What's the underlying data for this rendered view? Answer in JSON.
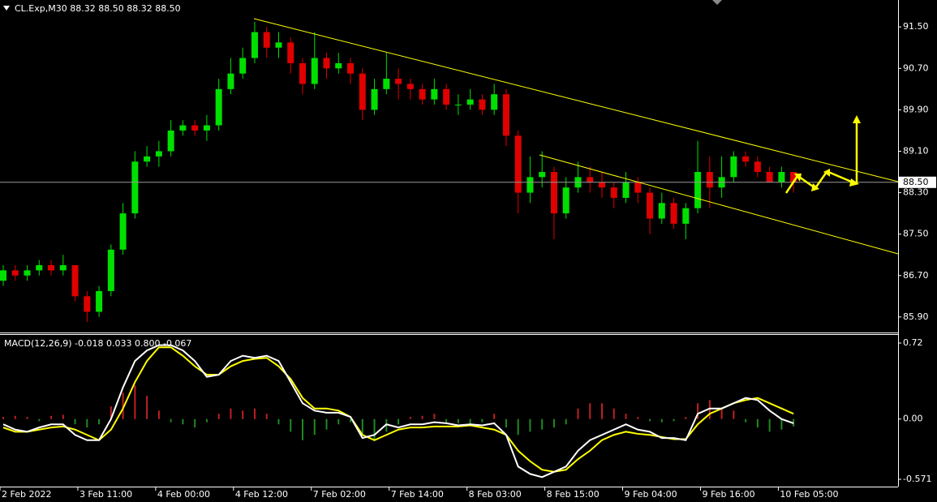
{
  "chart_data": [
    {
      "type": "candlestick",
      "title": "CL.Exp,M30  88.32 88.50 88.32 88.50",
      "up_color": "#00e000",
      "down_color": "#e00000",
      "x": [
        0,
        4,
        8,
        12,
        16,
        20,
        24,
        28,
        32,
        36,
        40,
        44,
        48,
        52,
        56,
        60,
        64,
        68,
        72,
        76,
        80,
        84,
        88,
        92,
        96,
        100,
        104,
        108,
        112,
        116,
        120,
        124,
        128,
        132,
        136,
        140,
        144,
        148,
        152,
        156,
        160,
        164,
        168,
        172,
        176,
        180,
        184,
        188,
        192,
        196,
        200,
        204,
        208,
        212,
        216,
        220,
        224,
        228,
        232,
        236,
        240,
        244,
        248,
        252,
        256,
        260,
        264
      ],
      "open": [
        86.6,
        86.8,
        86.7,
        86.8,
        86.9,
        86.8,
        86.9,
        86.3,
        86.0,
        86.4,
        87.2,
        87.9,
        88.9,
        89.0,
        89.1,
        89.5,
        89.6,
        89.5,
        89.6,
        90.3,
        90.6,
        90.9,
        91.4,
        91.1,
        91.2,
        90.8,
        90.4,
        90.9,
        90.7,
        90.8,
        90.6,
        89.9,
        90.3,
        90.5,
        90.4,
        90.3,
        90.1,
        90.3,
        90.0,
        90.0,
        90.1,
        89.9,
        90.2,
        89.4,
        88.3,
        88.6,
        88.7,
        87.9,
        88.4,
        88.6,
        88.5,
        88.4,
        88.2,
        88.5,
        88.3,
        87.8,
        88.1,
        87.7,
        88.0,
        88.7,
        88.4,
        88.6,
        89.0,
        88.9,
        88.7,
        88.5,
        88.7
      ],
      "high": [
        86.9,
        86.9,
        86.9,
        87.0,
        87.0,
        87.1,
        86.9,
        86.4,
        86.5,
        87.3,
        88.1,
        89.1,
        89.2,
        89.3,
        89.7,
        89.7,
        89.7,
        89.8,
        90.5,
        90.9,
        91.1,
        91.6,
        91.5,
        91.4,
        91.3,
        90.9,
        91.4,
        91.0,
        91.0,
        90.9,
        90.7,
        90.5,
        91.0,
        90.7,
        90.5,
        90.4,
        90.5,
        90.4,
        90.2,
        90.3,
        90.2,
        90.4,
        90.3,
        89.5,
        89.0,
        89.1,
        88.8,
        88.6,
        88.9,
        88.8,
        88.7,
        88.5,
        88.7,
        88.6,
        88.4,
        88.3,
        88.2,
        88.1,
        89.3,
        89.0,
        89.0,
        89.1,
        89.1,
        89.0,
        88.8,
        88.8,
        88.7
      ],
      "low": [
        86.5,
        86.6,
        86.6,
        86.7,
        86.7,
        86.7,
        86.2,
        85.8,
        85.9,
        86.3,
        87.1,
        87.8,
        88.8,
        88.8,
        89.0,
        89.4,
        89.4,
        89.3,
        89.5,
        90.2,
        90.5,
        90.8,
        90.9,
        90.9,
        90.6,
        90.2,
        90.3,
        90.5,
        90.6,
        90.4,
        89.7,
        89.8,
        90.2,
        90.1,
        90.1,
        90.0,
        90.0,
        89.9,
        89.8,
        89.9,
        89.8,
        89.8,
        89.2,
        87.9,
        88.1,
        88.4,
        87.4,
        87.8,
        88.3,
        88.3,
        88.2,
        88.0,
        88.1,
        88.1,
        87.5,
        87.7,
        87.6,
        87.4,
        87.9,
        88.0,
        88.2,
        88.5,
        88.8,
        88.6,
        88.5,
        88.4,
        88.3
      ],
      "close": [
        86.8,
        86.7,
        86.8,
        86.9,
        86.8,
        86.9,
        86.3,
        86.0,
        86.4,
        87.2,
        87.9,
        88.9,
        89.0,
        89.1,
        89.5,
        89.6,
        89.5,
        89.6,
        90.3,
        90.6,
        90.9,
        91.4,
        91.1,
        91.2,
        90.8,
        90.4,
        90.9,
        90.7,
        90.8,
        90.6,
        89.9,
        90.3,
        90.5,
        90.4,
        90.3,
        90.1,
        90.3,
        90.0,
        90.0,
        90.1,
        89.9,
        90.2,
        89.4,
        88.3,
        88.6,
        88.7,
        87.9,
        88.4,
        88.6,
        88.5,
        88.4,
        88.2,
        88.5,
        88.3,
        87.8,
        88.1,
        87.7,
        88.0,
        88.7,
        88.4,
        88.6,
        89.0,
        88.9,
        88.7,
        88.5,
        88.7,
        88.5
      ],
      "xlim": [
        0,
        300
      ],
      "xticks": [
        {
          "value": 0,
          "label": "2 Feb 2022"
        },
        {
          "value": 26,
          "label": "3 Feb 11:00"
        },
        {
          "value": 52,
          "label": "4 Feb 00:00"
        },
        {
          "value": 78,
          "label": "4 Feb 12:00"
        },
        {
          "value": 104,
          "label": "7 Feb 02:00"
        },
        {
          "value": 130,
          "label": "7 Feb 14:00"
        },
        {
          "value": 156,
          "label": "8 Feb 03:00"
        },
        {
          "value": 182,
          "label": "8 Feb 15:00"
        },
        {
          "value": 208,
          "label": "9 Feb 04:00"
        },
        {
          "value": 234,
          "label": "9 Feb 16:00"
        },
        {
          "value": 260,
          "label": "10 Feb 05:00"
        }
      ],
      "ylim": [
        85.6,
        92.02
      ],
      "yticks": [
        {
          "value": 85.9,
          "label": "85.90"
        },
        {
          "value": 86.7,
          "label": "86.70"
        },
        {
          "value": 87.5,
          "label": "87.50"
        },
        {
          "value": 88.3,
          "label": "88.30"
        },
        {
          "value": 89.1,
          "label": "89.10"
        },
        {
          "value": 89.9,
          "label": "89.90"
        },
        {
          "value": 90.7,
          "label": "90.70"
        },
        {
          "value": 91.5,
          "label": "91.50"
        }
      ],
      "current_price": {
        "value": 88.5,
        "label": "88.50"
      }
    },
    {
      "type": "macd",
      "title": "MACD(12,26,9) -0.018 0.033 0.800 -0.067",
      "x": [
        0,
        4,
        8,
        12,
        16,
        20,
        24,
        28,
        32,
        36,
        40,
        44,
        48,
        52,
        56,
        60,
        64,
        68,
        72,
        76,
        80,
        84,
        88,
        92,
        96,
        100,
        104,
        108,
        112,
        116,
        120,
        124,
        128,
        132,
        136,
        140,
        144,
        148,
        152,
        156,
        160,
        164,
        168,
        172,
        176,
        180,
        184,
        188,
        192,
        196,
        200,
        204,
        208,
        212,
        216,
        220,
        224,
        228,
        232,
        236,
        240,
        244,
        248,
        252,
        256,
        260,
        264
      ],
      "macd_color": "#ffffff",
      "signal_color": "#ffff00",
      "hist_up_color": "#c02020",
      "hist_down_color": "#1f8a1f",
      "macd": [
        -0.05,
        -0.1,
        -0.12,
        -0.08,
        -0.05,
        -0.05,
        -0.15,
        -0.2,
        -0.2,
        0.0,
        0.3,
        0.55,
        0.65,
        0.7,
        0.7,
        0.65,
        0.55,
        0.4,
        0.42,
        0.55,
        0.6,
        0.58,
        0.6,
        0.55,
        0.35,
        0.15,
        0.08,
        0.06,
        0.06,
        0.02,
        -0.18,
        -0.15,
        -0.05,
        -0.08,
        -0.05,
        -0.05,
        -0.03,
        -0.04,
        -0.06,
        -0.05,
        -0.06,
        -0.04,
        -0.15,
        -0.45,
        -0.52,
        -0.55,
        -0.5,
        -0.45,
        -0.3,
        -0.2,
        -0.15,
        -0.1,
        -0.05,
        -0.1,
        -0.12,
        -0.18,
        -0.18,
        -0.2,
        0.05,
        0.1,
        0.1,
        0.15,
        0.2,
        0.18,
        0.08,
        0.0,
        -0.04
      ],
      "signal": [
        -0.08,
        -0.12,
        -0.12,
        -0.1,
        -0.08,
        -0.07,
        -0.1,
        -0.15,
        -0.2,
        -0.1,
        0.1,
        0.35,
        0.55,
        0.68,
        0.68,
        0.6,
        0.5,
        0.42,
        0.42,
        0.5,
        0.55,
        0.57,
        0.58,
        0.5,
        0.38,
        0.2,
        0.1,
        0.1,
        0.08,
        0.02,
        -0.15,
        -0.2,
        -0.15,
        -0.1,
        -0.08,
        -0.08,
        -0.07,
        -0.07,
        -0.07,
        -0.06,
        -0.08,
        -0.1,
        -0.15,
        -0.3,
        -0.4,
        -0.48,
        -0.5,
        -0.48,
        -0.38,
        -0.3,
        -0.2,
        -0.15,
        -0.12,
        -0.14,
        -0.15,
        -0.17,
        -0.19,
        -0.19,
        -0.05,
        0.05,
        0.1,
        0.15,
        0.18,
        0.2,
        0.15,
        0.1,
        0.05
      ],
      "histogram": [
        0.02,
        0.03,
        0.02,
        -0.02,
        0.03,
        0.04,
        -0.05,
        -0.08,
        -0.05,
        0.12,
        0.25,
        0.32,
        0.22,
        0.08,
        -0.03,
        -0.05,
        -0.08,
        -0.03,
        0.05,
        0.1,
        0.08,
        0.1,
        0.05,
        -0.05,
        -0.12,
        -0.2,
        -0.15,
        -0.1,
        -0.05,
        -0.03,
        -0.15,
        -0.2,
        -0.12,
        -0.05,
        0.02,
        0.03,
        0.05,
        -0.03,
        -0.04,
        -0.05,
        -0.03,
        0.05,
        -0.08,
        -0.15,
        -0.12,
        -0.1,
        -0.08,
        -0.05,
        0.1,
        0.15,
        0.15,
        0.1,
        0.05,
        0.02,
        -0.02,
        -0.03,
        -0.02,
        0.02,
        0.15,
        0.18,
        0.1,
        0.08,
        -0.03,
        -0.08,
        -0.12,
        -0.1,
        -0.07
      ],
      "ylim": [
        -0.64,
        0.797
      ],
      "yticks": [
        0.72,
        {
          "value": 0,
          "label": "0.00"
        },
        -0.571
      ]
    }
  ]
}
